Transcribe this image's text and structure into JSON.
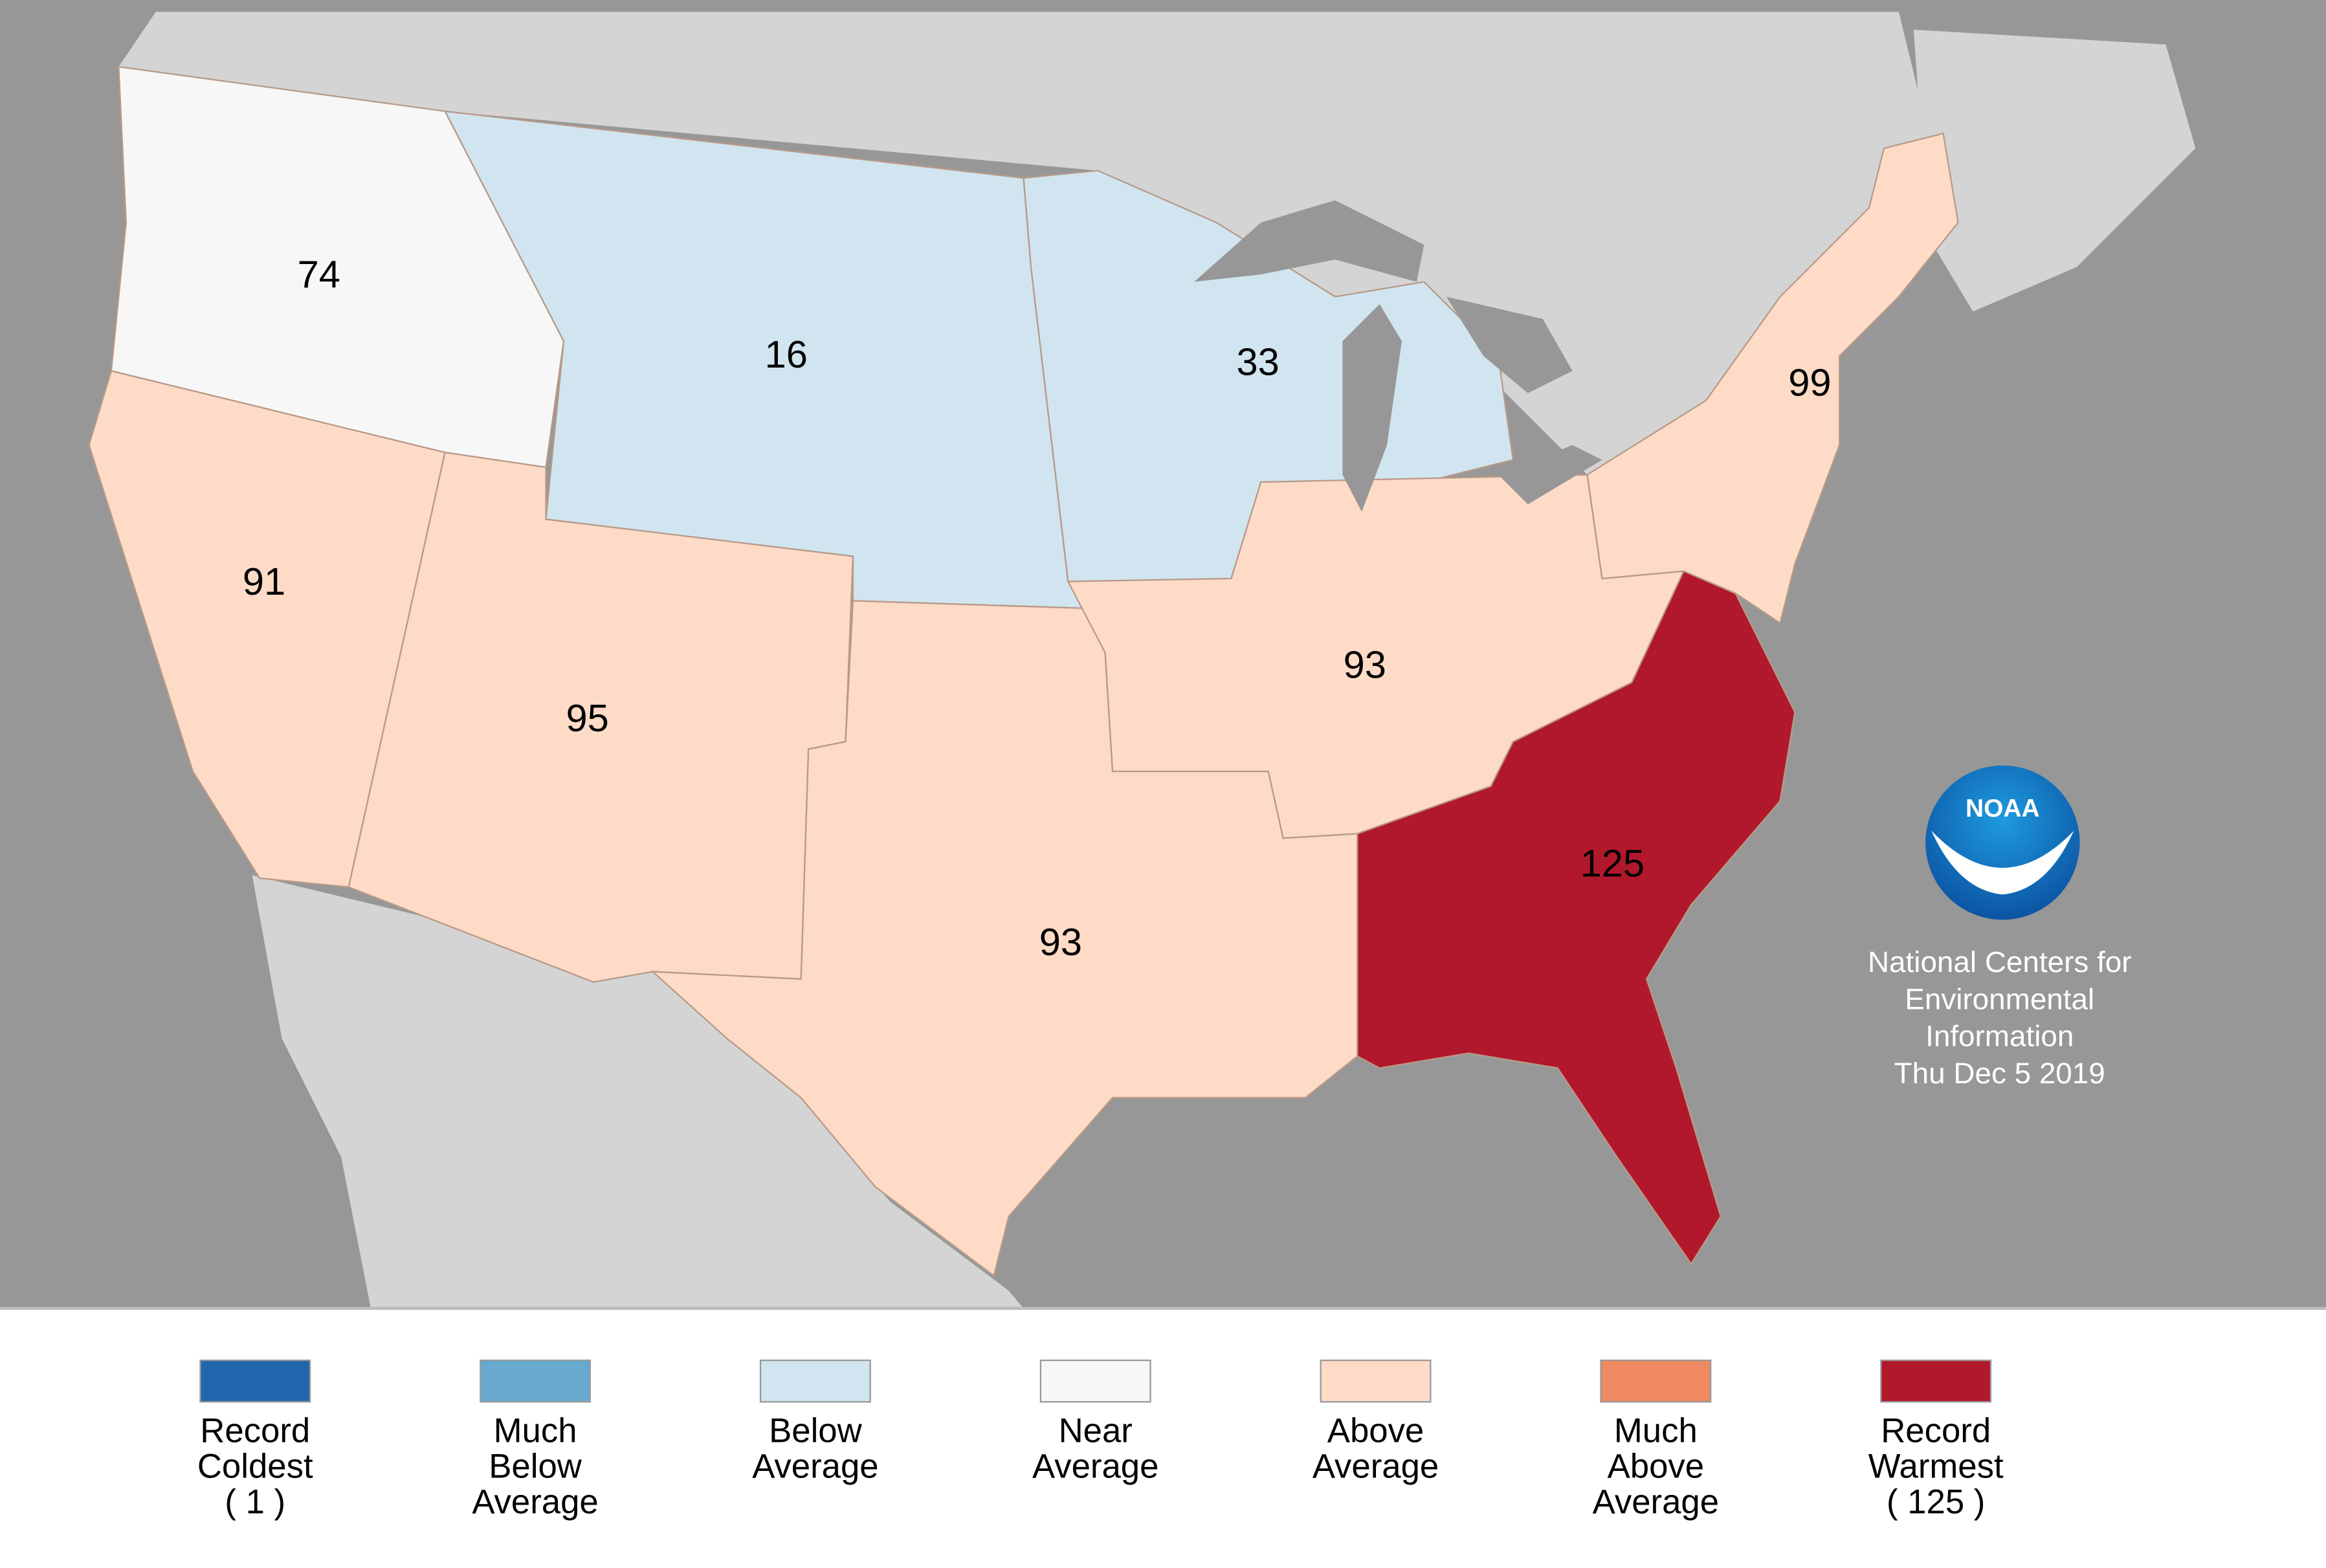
{
  "map": {
    "regions": [
      {
        "value": 74,
        "color": "#f7f7f7"
      },
      {
        "value": 91,
        "color": "#fddbc7"
      },
      {
        "value": 95,
        "color": "#fddbc7"
      },
      {
        "value": 16,
        "color": "#d1e5f0"
      },
      {
        "value": 33,
        "color": "#d1e5f0"
      },
      {
        "value": 93,
        "color": "#fddbc7"
      },
      {
        "value": 93,
        "color": "#fddbc7"
      },
      {
        "value": 125,
        "color": "#b2182b"
      },
      {
        "value": 99,
        "color": "#fddbc7"
      }
    ],
    "logo_text": "NOAA",
    "credit": [
      "National Centers for",
      "Environmental",
      "Information",
      "Thu Dec  5 2019"
    ]
  },
  "legend": [
    {
      "color": "#2166ac",
      "lines": [
        "Record",
        "Coldest",
        "( 1 )"
      ]
    },
    {
      "color": "#67a9cf",
      "lines": [
        "Much",
        "Below",
        "Average"
      ]
    },
    {
      "color": "#d1e5f0",
      "lines": [
        "Below",
        "Average"
      ]
    },
    {
      "color": "#f7f7f7",
      "lines": [
        "Near",
        "Average"
      ]
    },
    {
      "color": "#fddbc7",
      "lines": [
        "Above",
        "Average"
      ]
    },
    {
      "color": "#ef8a62",
      "lines": [
        "Much",
        "Above",
        "Average"
      ]
    },
    {
      "color": "#b2182b",
      "lines": [
        "Record",
        "Warmest",
        "( 125 )"
      ]
    }
  ]
}
